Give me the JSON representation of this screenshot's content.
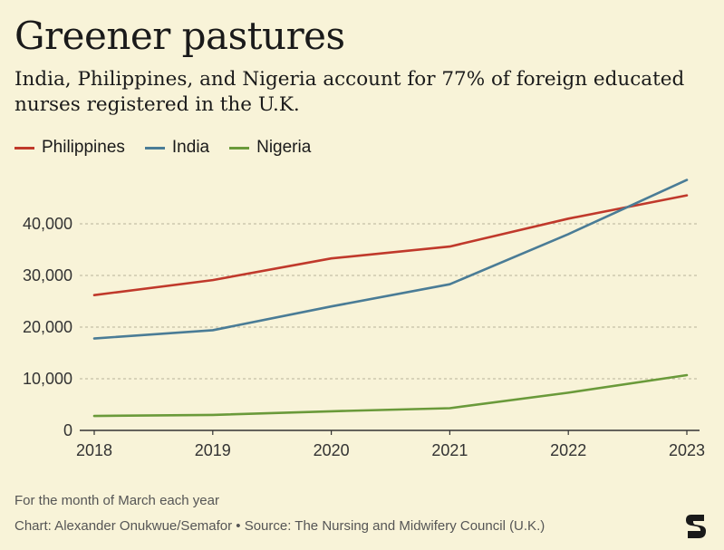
{
  "header": {
    "title": "Greener pastures",
    "subtitle": "India, Philippines, and Nigeria account for 77% of foreign educated nurses registered in the U.K."
  },
  "legend": [
    {
      "label": "Philippines",
      "color": "#c0392b"
    },
    {
      "label": "India",
      "color": "#4a7c96"
    },
    {
      "label": "Nigeria",
      "color": "#6a9a3a"
    }
  ],
  "chart_data": {
    "type": "line",
    "x": [
      "2018",
      "2019",
      "2020",
      "2021",
      "2022",
      "2023"
    ],
    "series": [
      {
        "name": "Philippines",
        "color": "#c0392b",
        "values": [
          26200,
          29100,
          33300,
          35600,
          41000,
          45500
        ]
      },
      {
        "name": "India",
        "color": "#4a7c96",
        "values": [
          17800,
          19400,
          24000,
          28300,
          38000,
          48500
        ]
      },
      {
        "name": "Nigeria",
        "color": "#6a9a3a",
        "values": [
          2800,
          3000,
          3700,
          4300,
          7300,
          10700
        ]
      }
    ],
    "yticks": [
      "0",
      "10,000",
      "20,000",
      "30,000",
      "40,000"
    ],
    "ytick_values": [
      0,
      10000,
      20000,
      30000,
      40000
    ],
    "ylim": [
      0,
      50000
    ],
    "grid": true,
    "legend_position": "top-left"
  },
  "footer": {
    "note": "For the month of March each year",
    "credit": "Chart: Alexander Onukwue/Semafor • Source: The Nursing and Midwifery Council (U.K.)",
    "logo_icon": "semafor-logo-icon"
  }
}
